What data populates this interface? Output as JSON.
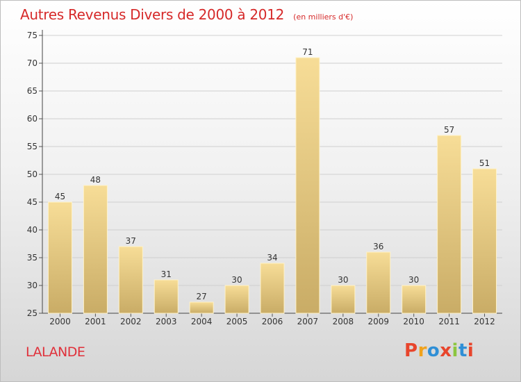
{
  "header": {
    "title": "Autres Revenus Divers de 2000 à 2012",
    "subtitle": "(en milliers d'€)"
  },
  "footer": {
    "commune": "LALANDE",
    "logo_text": "Proxiti"
  },
  "colors": {
    "title": "#d62929",
    "bar_light": "#f7dd97",
    "bar_dark": "#c9ac66",
    "logo": [
      "#e8452c",
      "#f0a21c",
      "#2f8fd6",
      "#e8452c",
      "#8cc63f",
      "#2f8fd6",
      "#e8452c"
    ]
  },
  "chart_data": {
    "type": "bar",
    "title": "Autres Revenus Divers de 2000 à 2012",
    "subtitle": "(en milliers d'€)",
    "categories": [
      "2000",
      "2001",
      "2002",
      "2003",
      "2004",
      "2005",
      "2006",
      "2007",
      "2008",
      "2009",
      "2010",
      "2011",
      "2012"
    ],
    "values": [
      45,
      48,
      37,
      31,
      27,
      30,
      34,
      71,
      30,
      36,
      30,
      57,
      51
    ],
    "ylim": [
      25,
      75
    ],
    "yticks": [
      25,
      30,
      35,
      40,
      45,
      50,
      55,
      60,
      65,
      70,
      75
    ],
    "grid": true,
    "data_labels": true
  }
}
